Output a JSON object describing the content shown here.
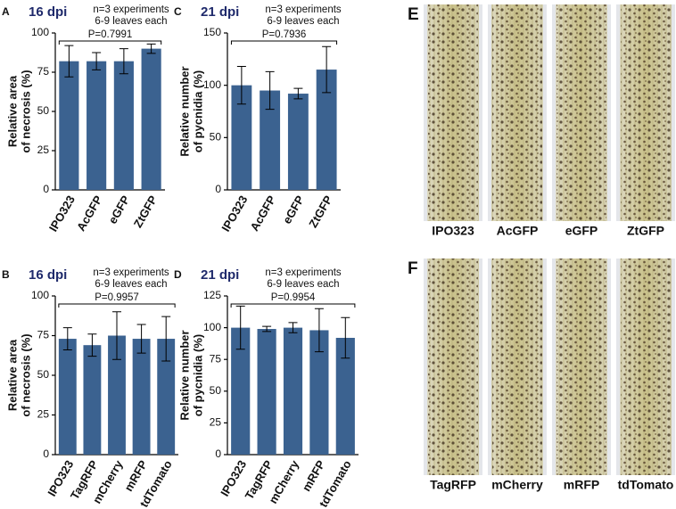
{
  "chart_data": [
    {
      "type": "bar",
      "panel_letter": "A",
      "title": "16 dpi",
      "annotation": [
        "n=3 experiments",
        "6-9 leaves each"
      ],
      "p_value": "P=0.7991",
      "ylabel": [
        "Relative area",
        "of necrosis (%)"
      ],
      "categories": [
        "IPO323",
        "AcGFP",
        "eGFP",
        "ZtGFP"
      ],
      "values": [
        82,
        82,
        82,
        90
      ],
      "errors": [
        10,
        5.5,
        8,
        3
      ],
      "color": "#3b6290",
      "ylim": [
        0,
        100
      ],
      "yticks": [
        0,
        25,
        50,
        75,
        100
      ]
    },
    {
      "type": "bar",
      "panel_letter": "C",
      "title": "21 dpi",
      "annotation": [
        "n=3 experiments",
        "6-9 leaves each"
      ],
      "p_value": "P=0.7936",
      "ylabel": [
        "Relative number",
        "of pycnidia (%)"
      ],
      "categories": [
        "IPO323",
        "AcGFP",
        "eGFP",
        "ZtGFP"
      ],
      "values": [
        100,
        95,
        92,
        115
      ],
      "errors": [
        18,
        18,
        5,
        22
      ],
      "color": "#3b6290",
      "ylim": [
        0,
        150
      ],
      "yticks": [
        0,
        50,
        100,
        150
      ]
    },
    {
      "type": "bar",
      "panel_letter": "B",
      "title": "16 dpi",
      "annotation": [
        "n=3 experiments",
        "6-9 leaves each"
      ],
      "p_value": "P=0.9957",
      "ylabel": [
        "Relative area",
        "of necrosis (%)"
      ],
      "categories": [
        "IPO323",
        "TagRFP",
        "mCherry",
        "mRFP",
        "tdTomato"
      ],
      "values": [
        73,
        69,
        75,
        73,
        73
      ],
      "errors": [
        7,
        7,
        15,
        9,
        14
      ],
      "color": "#3b6290",
      "ylim": [
        0,
        100
      ],
      "yticks": [
        0,
        25,
        50,
        75,
        100
      ]
    },
    {
      "type": "bar",
      "panel_letter": "D",
      "title": "21 dpi",
      "annotation": [
        "n=3 experiments",
        "6-9 leaves each"
      ],
      "p_value": "P=0.9954",
      "ylabel": [
        "Relative number",
        "of pycnidia (%)"
      ],
      "categories": [
        "IPO323",
        "TagRFP",
        "mCherry",
        "mRFP",
        "tdTomato"
      ],
      "values": [
        100,
        99,
        100,
        98,
        92
      ],
      "errors": [
        17,
        2,
        4,
        17,
        16
      ],
      "color": "#3b6290",
      "ylim": [
        0,
        125
      ],
      "yticks": [
        0,
        25,
        50,
        75,
        100,
        125
      ]
    }
  ],
  "leaf_panels": [
    {
      "letter": "E",
      "labels": [
        "IPO323",
        "AcGFP",
        "eGFP",
        "ZtGFP"
      ]
    },
    {
      "letter": "F",
      "labels": [
        "TagRFP",
        "mCherry",
        "mRFP",
        "tdTomato"
      ]
    }
  ]
}
